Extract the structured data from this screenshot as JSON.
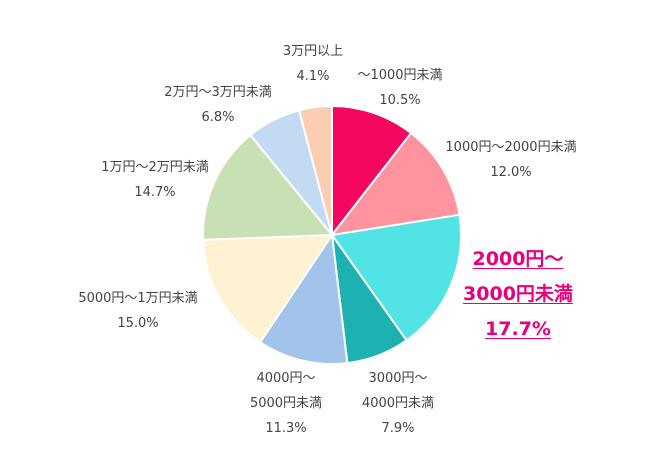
{
  "chart_data": {
    "type": "pie",
    "title": "",
    "start_angle_deg": 0,
    "direction": "clockwise",
    "slices": [
      {
        "label_lines": [
          "〜1000円未満"
        ],
        "value": 10.5,
        "value_label": "10.5%",
        "color": "#f4075f",
        "highlight": false
      },
      {
        "label_lines": [
          "1000円〜2000円未満"
        ],
        "value": 12.0,
        "value_label": "12.0%",
        "color": "#ff949f",
        "highlight": false
      },
      {
        "label_lines": [
          "2000円〜",
          "3000円未満"
        ],
        "value": 17.7,
        "value_label": "17.7%",
        "color": "#52e3e5",
        "highlight": true
      },
      {
        "label_lines": [
          "3000円〜",
          "4000円未満"
        ],
        "value": 7.9,
        "value_label": "7.9%",
        "color": "#1db2b1",
        "highlight": false
      },
      {
        "label_lines": [
          "4000円〜",
          "5000円未満"
        ],
        "value": 11.3,
        "value_label": "11.3%",
        "color": "#a3c4ea",
        "highlight": false
      },
      {
        "label_lines": [
          "5000円〜1万円未満"
        ],
        "value": 15.0,
        "value_label": "15.0%",
        "color": "#fdf2d2",
        "highlight": false
      },
      {
        "label_lines": [
          "1万円〜2万円未満"
        ],
        "value": 14.7,
        "value_label": "14.7%",
        "color": "#c7e1b5",
        "highlight": false
      },
      {
        "label_lines": [
          "2万円〜3万円未満"
        ],
        "value": 6.8,
        "value_label": "6.8%",
        "color": "#c3dbf2",
        "highlight": false
      },
      {
        "label_lines": [
          "3万円以上"
        ],
        "value": 4.1,
        "value_label": "4.1%",
        "color": "#fbcdb2",
        "highlight": false
      }
    ]
  }
}
